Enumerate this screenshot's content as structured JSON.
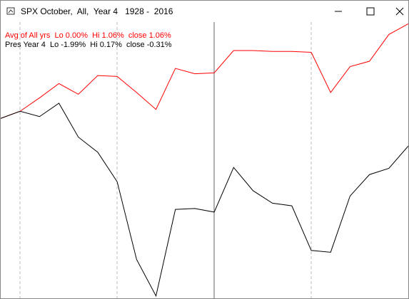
{
  "window": {
    "title": "SPX October,  All,  Year 4   1928 -  2016"
  },
  "chart_data": {
    "type": "line",
    "ylim": [
      -2.016,
      1.079
    ],
    "series": [
      {
        "name": "Avg of All yrs  Lo 0.00%  Hi 1.06%  close 1.06%",
        "color": "#ff0000",
        "values": [
          0,
          0.08,
          0.23,
          0.39,
          0.27,
          0.48,
          0.47,
          0.29,
          0.1,
          0.56,
          0.5,
          0.51,
          0.76,
          0.76,
          0.75,
          0.75,
          0.74,
          0.29,
          0.58,
          0.64,
          0.94,
          1.06
        ]
      },
      {
        "name": "Pres Year 4  Lo -1.99%  Hi 0.17%  close -0.31%",
        "color": "#000000",
        "values": [
          0,
          0.08,
          0.02,
          0.17,
          -0.21,
          -0.38,
          -0.71,
          -1.58,
          -1.99,
          -1.02,
          -1.01,
          -1.05,
          -0.55,
          -0.81,
          -0.95,
          -0.98,
          -1.48,
          -1.5,
          -0.87,
          -0.63,
          -0.56,
          -0.31
        ]
      }
    ]
  }
}
